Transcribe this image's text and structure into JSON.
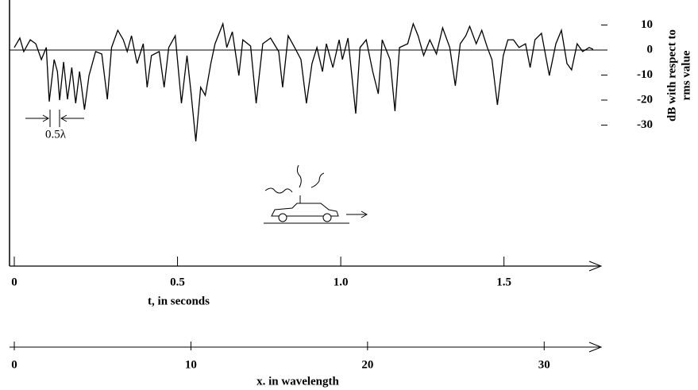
{
  "chart_data": {
    "type": "line",
    "x": [
      0,
      0.017,
      0.029,
      0.049,
      0.066,
      0.083,
      0.098,
      0.107,
      0.122,
      0.132,
      0.139,
      0.151,
      0.163,
      0.176,
      0.188,
      0.2,
      0.215,
      0.229,
      0.249,
      0.268,
      0.285,
      0.298,
      0.317,
      0.334,
      0.346,
      0.359,
      0.376,
      0.395,
      0.407,
      0.42,
      0.444,
      0.459,
      0.473,
      0.493,
      0.512,
      0.529,
      0.541,
      0.556,
      0.571,
      0.585,
      0.602,
      0.615,
      0.639,
      0.651,
      0.668,
      0.688,
      0.7,
      0.724,
      0.741,
      0.761,
      0.785,
      0.81,
      0.822,
      0.839,
      0.859,
      0.878,
      0.895,
      0.912,
      0.927,
      0.944,
      0.956,
      0.976,
      0.995,
      1.005,
      1.022,
      1.046,
      1.059,
      1.078,
      1.098,
      1.115,
      1.127,
      1.151,
      1.166,
      1.18,
      1.205,
      1.222,
      1.237,
      1.254,
      1.273,
      1.293,
      1.312,
      1.334,
      1.351,
      1.366,
      1.383,
      1.395,
      1.415,
      1.432,
      1.449,
      1.463,
      1.48,
      1.498,
      1.512,
      1.529,
      1.546,
      1.566,
      1.58,
      1.595,
      1.615,
      1.639,
      1.659,
      1.676,
      1.693,
      1.707,
      1.724,
      1.741,
      1.761,
      1.773
    ],
    "series": [
      {
        "color": "#000000",
        "values": [
          1,
          4.8,
          -0.6,
          4.1,
          2.5,
          -3.8,
          1.0,
          -20.6,
          -3.8,
          -8.6,
          -20.0,
          -4.8,
          -19.7,
          -7.0,
          -21.3,
          -8.6,
          -23.8,
          -10.2,
          -0.6,
          -1.6,
          -19.7,
          1.0,
          7.9,
          4.1,
          -0.6,
          5.7,
          -5.4,
          2.5,
          -14.9,
          -2.2,
          -0.6,
          -14.9,
          1.0,
          5.7,
          -21.3,
          -2.2,
          -16.5,
          -36.5,
          -14.9,
          -18.1,
          -5.4,
          2.5,
          10.5,
          1.0,
          7.3,
          -10.2,
          4.1,
          1.6,
          -21.3,
          2.5,
          4.8,
          -0.6,
          -14.9,
          5.7,
          1.0,
          -3.8,
          -21.3,
          -5.4,
          1.0,
          -8.6,
          2.5,
          -7.0,
          4.1,
          -3.8,
          4.8,
          -25.4,
          1.0,
          4.1,
          -8.6,
          -17.5,
          4.1,
          -3.8,
          -24.4,
          1.0,
          2.5,
          10.5,
          5.7,
          -2.2,
          4.1,
          -1.6,
          8.9,
          1.0,
          -14.3,
          2.5,
          5.7,
          9.5,
          2.5,
          7.9,
          1.0,
          -3.8,
          -21.9,
          -2.2,
          4.1,
          4.1,
          1.0,
          2.5,
          -7.0,
          4.1,
          6.7,
          -10.2,
          2.5,
          7.9,
          -5.4,
          -7.9,
          2.5,
          -0.6,
          1.0,
          0.3
        ]
      }
    ],
    "xlim": [
      0,
      1.8
    ],
    "xticks": [
      0,
      0.5,
      {
        "value": 1,
        "label": "1.0"
      },
      1.5
    ],
    "xlabel": "t, in seconds",
    "ylim": [
      -40,
      20
    ],
    "yticks": [
      10,
      0,
      -10,
      -20,
      -30
    ],
    "yaxis_position": "right",
    "ylabel": [
      "dB with respect to",
      "rms value"
    ],
    "x2lim": [
      0,
      33
    ],
    "x2ticks": [
      0,
      10,
      20,
      30
    ],
    "x2label": "x. in wavelength",
    "annotation": "0.5λ"
  }
}
